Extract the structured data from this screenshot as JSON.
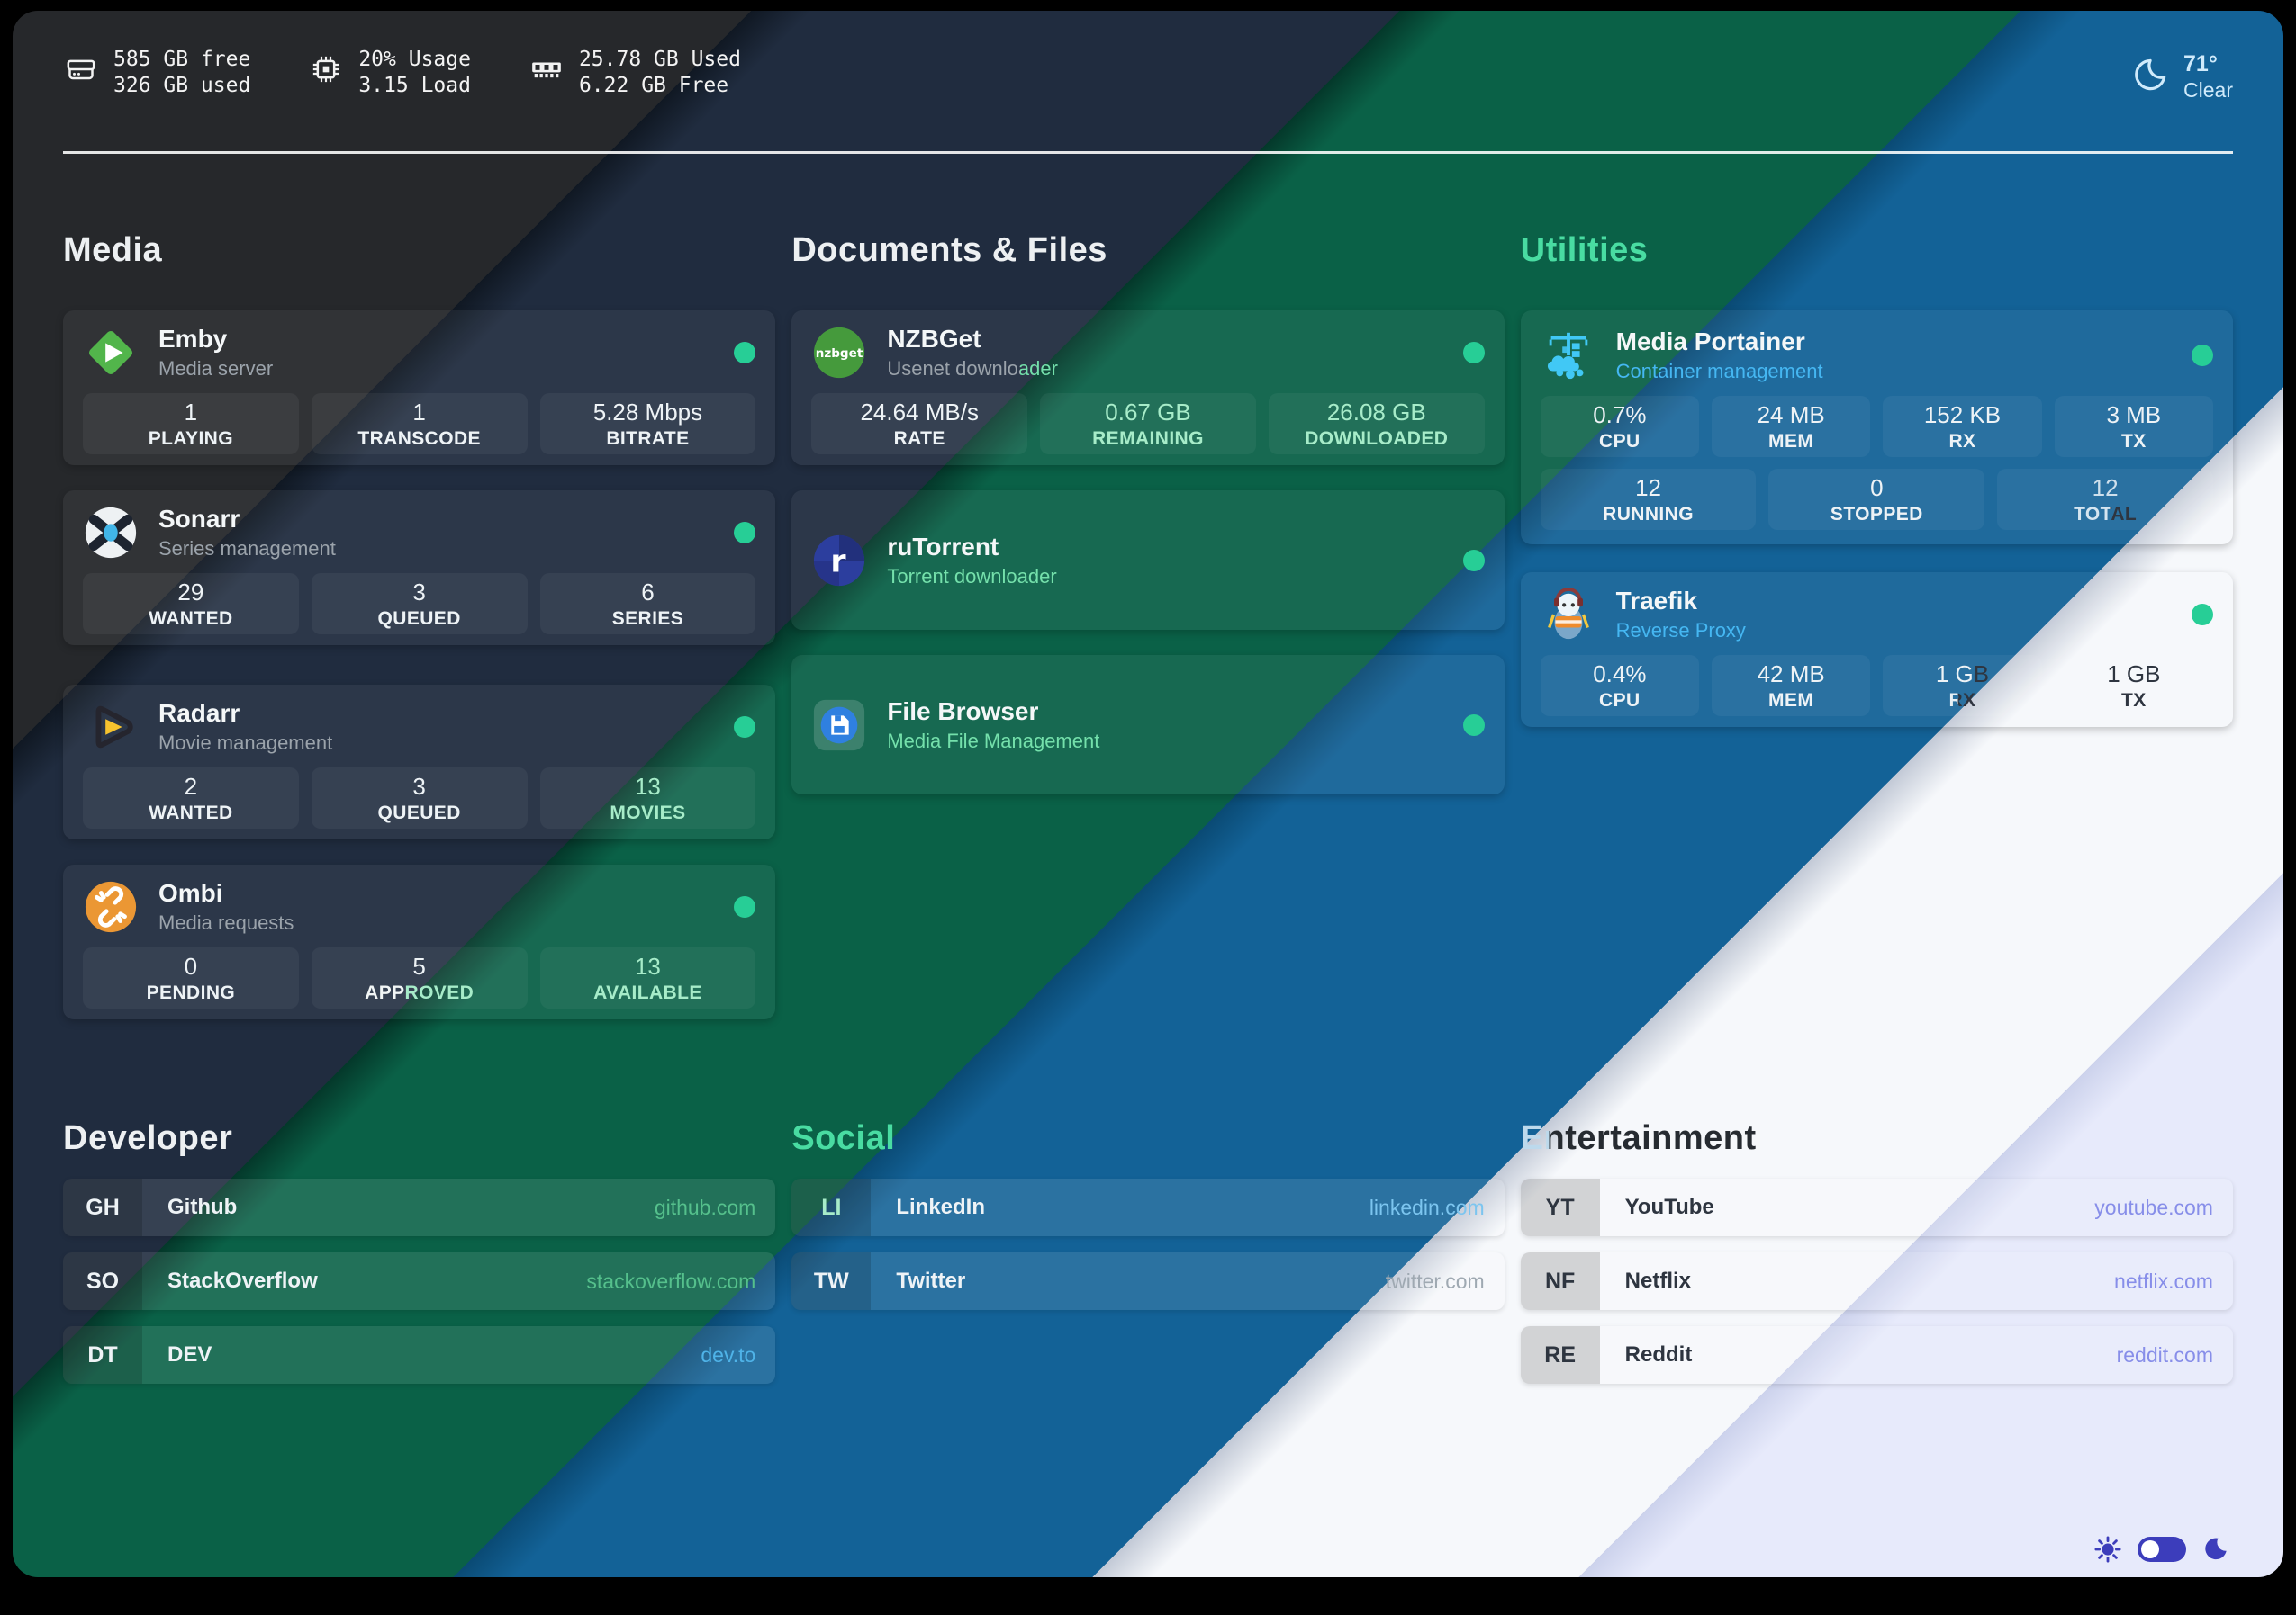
{
  "topbar": {
    "disk": {
      "icon": "hdd-icon",
      "line1": "585 GB free",
      "line2": "326 GB used"
    },
    "cpu": {
      "icon": "cpu-icon",
      "line1": "20% Usage",
      "line2": "3.15 Load"
    },
    "memory": {
      "icon": "ram-icon",
      "line1": "25.78 GB Used",
      "line2": "6.22 GB Free"
    },
    "weather": {
      "icon": "moon-outline-icon",
      "temperature": "71°",
      "condition": "Clear"
    }
  },
  "service_sections": [
    {
      "title": "Media",
      "heading_tone": "h-light",
      "slug": "media",
      "cards": [
        {
          "name": "Emby",
          "subtitle": "Media server",
          "icon": "emby-icon",
          "sub_tone": "sub-gray",
          "online": true,
          "tile_rows": [
            [
              {
                "value": "1",
                "label": "PLAYING",
                "tone": "tone-light"
              },
              {
                "value": "1",
                "label": "TRANSCODE",
                "tone": "tone-light"
              },
              {
                "value": "5.28 Mbps",
                "label": "BITRATE",
                "tone": "tone-light"
              }
            ]
          ]
        },
        {
          "name": "Sonarr",
          "subtitle": "Series management",
          "icon": "sonarr-icon",
          "sub_tone": "sub-gray",
          "online": true,
          "tile_rows": [
            [
              {
                "value": "29",
                "label": "WANTED",
                "tone": "tone-light"
              },
              {
                "value": "3",
                "label": "QUEUED",
                "tone": "tone-light"
              },
              {
                "value": "6",
                "label": "SERIES",
                "tone": "tone-light"
              }
            ]
          ]
        },
        {
          "name": "Radarr",
          "subtitle": "Movie management",
          "icon": "radarr-icon",
          "sub_tone": "sub-gray",
          "online": true,
          "tile_rows": [
            [
              {
                "value": "2",
                "label": "WANTED",
                "tone": "tone-light"
              },
              {
                "value": "3",
                "label": "QUEUED",
                "tone": "tone-light"
              },
              {
                "value": "13",
                "label": "MOVIES",
                "tone": "tone-mint"
              }
            ]
          ]
        },
        {
          "name": "Ombi",
          "subtitle": "Media requests",
          "icon": "ombi-icon",
          "sub_tone": "sub-gray",
          "online": true,
          "tile_rows": [
            [
              {
                "value": "0",
                "label": "PENDING",
                "tone": "tone-light"
              },
              {
                "value": "5",
                "label": "APPROVED",
                "tone": "tone-light",
                "label_tone": "sp sp-approved"
              },
              {
                "value": "13",
                "label": "AVAILABLE",
                "tone": "tone-mint"
              }
            ]
          ]
        }
      ]
    },
    {
      "title": "Documents & Files",
      "heading_tone": "h-light",
      "slug": "documents-files",
      "cards": [
        {
          "name": "NZBGet",
          "subtitle": "Usenet downloader",
          "icon": "nzbget-icon",
          "sub_tone": "sp sp-nzbsub",
          "online": true,
          "tile_rows": [
            [
              {
                "value": "24.64 MB/s",
                "label": "RATE",
                "tone": "tone-light"
              },
              {
                "value": "0.67 GB",
                "label": "REMAINING",
                "tone": "tone-mint"
              },
              {
                "value": "26.08 GB",
                "label": "DOWNLOADED",
                "tone": "tone-mint"
              }
            ]
          ]
        },
        {
          "name": "ruTorrent",
          "subtitle": "Torrent downloader",
          "icon": "rutorrent-icon",
          "sub_tone": "sub-mint",
          "online": true,
          "tile_rows": []
        },
        {
          "name": "File Browser",
          "subtitle": "Media File Management",
          "icon": "filebrowser-icon",
          "sub_tone": "sub-mint",
          "online": true,
          "tile_rows": []
        }
      ]
    },
    {
      "title": "Utilities",
      "heading_tone": "h-mint",
      "slug": "utilities",
      "cards": [
        {
          "name": "Media Portainer",
          "subtitle": "Container management",
          "icon": "portainer-icon",
          "sub_tone": "sub-cyan",
          "online": true,
          "tile_rows": [
            [
              {
                "value": "0.7%",
                "label": "CPU",
                "tone": "tone-light"
              },
              {
                "value": "24 MB",
                "label": "MEM",
                "tone": "tone-light"
              },
              {
                "value": "152 KB",
                "label": "RX",
                "tone": "tone-light"
              },
              {
                "value": "3 MB",
                "label": "TX",
                "tone": "tone-light"
              }
            ],
            [
              {
                "value": "12",
                "label": "RUNNING",
                "tone": "tone-light"
              },
              {
                "value": "0",
                "label": "STOPPED",
                "tone": "tone-light"
              },
              {
                "value": "12",
                "label": "TOTAL",
                "tone": "tone-pale",
                "label_tone": "sp sp-total"
              }
            ]
          ]
        },
        {
          "name": "Traefik",
          "subtitle": "Reverse Proxy",
          "icon": "traefik-icon",
          "sub_tone": "sub-cyan",
          "online": true,
          "tile_rows": [
            [
              {
                "value": "0.4%",
                "label": "CPU",
                "tone": "tone-light"
              },
              {
                "value": "42 MB",
                "label": "MEM",
                "tone": "tone-light"
              },
              {
                "value": "1 GB",
                "label": "RX",
                "tone": "sp sp-rxv",
                "label_tone": "sp sp-rx"
              },
              {
                "value": "1 GB",
                "label": "TX",
                "tone": "tone-dark"
              }
            ]
          ]
        }
      ]
    }
  ],
  "link_sections": [
    {
      "title": "Developer",
      "heading_tone": "h-light",
      "slug": "developer",
      "rows": [
        {
          "abbr": "GH",
          "name": "Github",
          "url": "github.com",
          "abbr_tone": "tone-light",
          "name_tone": "tone-light",
          "url_tone": "tone-green"
        },
        {
          "abbr": "SO",
          "name": "StackOverflow",
          "url": "stackoverflow.com",
          "abbr_tone": "tone-light",
          "name_tone": "tone-light",
          "url_tone": "tone-green"
        },
        {
          "abbr": "DT",
          "name": "DEV",
          "url": "dev.to",
          "abbr_tone": "tone-light",
          "name_tone": "tone-light",
          "url_tone": "tone-blue"
        }
      ]
    },
    {
      "title": "Social",
      "heading_tone": "h-mint",
      "slug": "social",
      "rows": [
        {
          "abbr": "LI",
          "name": "LinkedIn",
          "url": "linkedin.com",
          "abbr_tone": "tone-mint",
          "name_tone": "tone-light",
          "url_tone": "tone-bluelight"
        },
        {
          "abbr": "TW",
          "name": "Twitter",
          "url": "twitter.com",
          "abbr_tone": "tone-light",
          "name_tone": "tone-light",
          "url_tone": "tone-muted"
        }
      ]
    },
    {
      "title": "Entertainment",
      "heading_tone": "sp sp-ent",
      "slug": "entertainment",
      "rows": [
        {
          "abbr": "YT",
          "name": "YouTube",
          "url": "youtube.com",
          "abbr_tone": "tone-dark",
          "name_tone": "tone-dark",
          "url_tone": "tone-indigo"
        },
        {
          "abbr": "NF",
          "name": "Netflix",
          "url": "netflix.com",
          "abbr_tone": "tone-dark",
          "name_tone": "tone-dark",
          "url_tone": "tone-indigo"
        },
        {
          "abbr": "RE",
          "name": "Reddit",
          "url": "reddit.com",
          "abbr_tone": "tone-dark",
          "name_tone": "tone-dark",
          "url_tone": "tone-indigo"
        }
      ]
    }
  ],
  "footer": {
    "light_icon": "sun-icon",
    "dark_icon": "moon-icon",
    "toggle_state": "light-selected"
  },
  "colors": {
    "status_dot": "#27ce96",
    "accent_cyan": "#45b7f2",
    "accent_mint": "#49dca2",
    "link_indigo": "#878ee9",
    "toggle_indigo": "#3c3dbb",
    "stripe_charcoal": "#26282b",
    "stripe_navy": "#202c3f",
    "stripe_green": "#0a6147",
    "stripe_blue": "#136297",
    "stripe_white": "#f6f8fb",
    "stripe_lavender": "#e7eafb"
  }
}
